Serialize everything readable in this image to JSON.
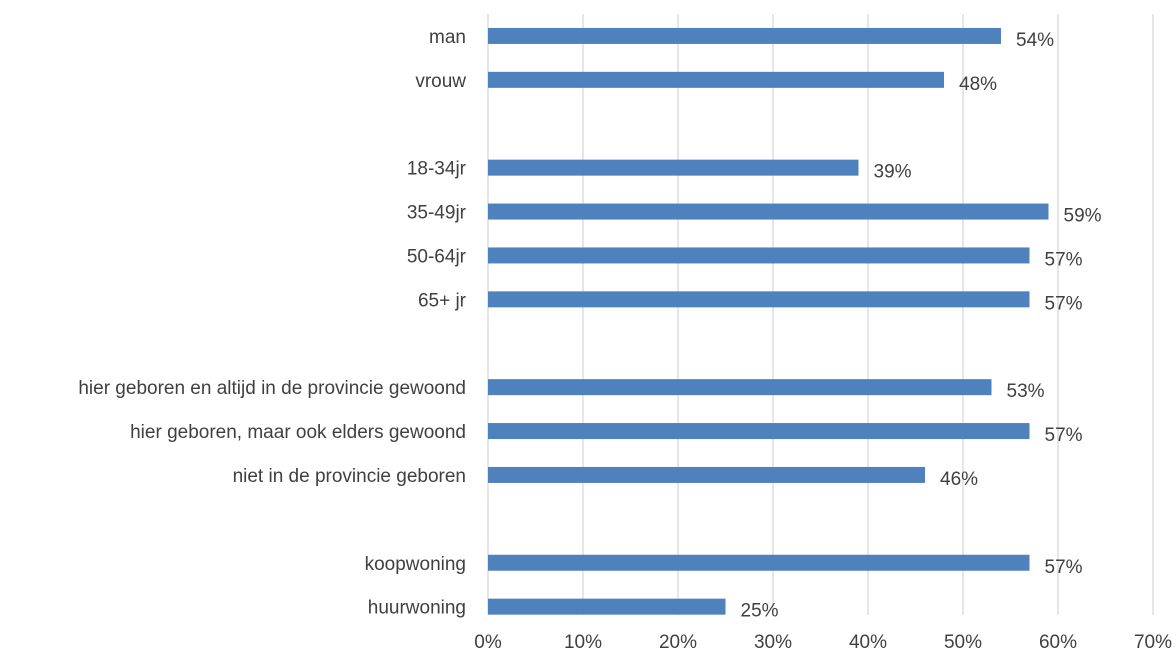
{
  "chart_data": {
    "type": "bar",
    "orientation": "horizontal",
    "categories": [
      "man",
      "vrouw",
      "",
      "18-34jr",
      "35-49jr",
      "50-64jr",
      "65+ jr",
      "",
      "hier geboren en altijd in de provincie gewoond",
      "hier geboren, maar ook elders gewoond",
      "niet in de provincie geboren",
      "",
      "koopwoning",
      "huurwoning"
    ],
    "values": [
      54,
      48,
      null,
      39,
      59,
      57,
      57,
      null,
      53,
      57,
      46,
      null,
      57,
      25
    ],
    "value_labels": [
      "54%",
      "48%",
      "",
      "39%",
      "59%",
      "57%",
      "57%",
      "",
      "53%",
      "57%",
      "46%",
      "",
      "57%",
      "25%"
    ],
    "title": "",
    "xlabel": "",
    "ylabel": "",
    "xlim": [
      0,
      70
    ],
    "x_ticks": [
      "0%",
      "10%",
      "20%",
      "30%",
      "40%",
      "50%",
      "60%",
      "70%"
    ],
    "grid": "vertical",
    "legend": "none",
    "colors": {
      "bar": "#4f81bd",
      "grid": "#d9d9d9",
      "text": "#404040"
    }
  }
}
